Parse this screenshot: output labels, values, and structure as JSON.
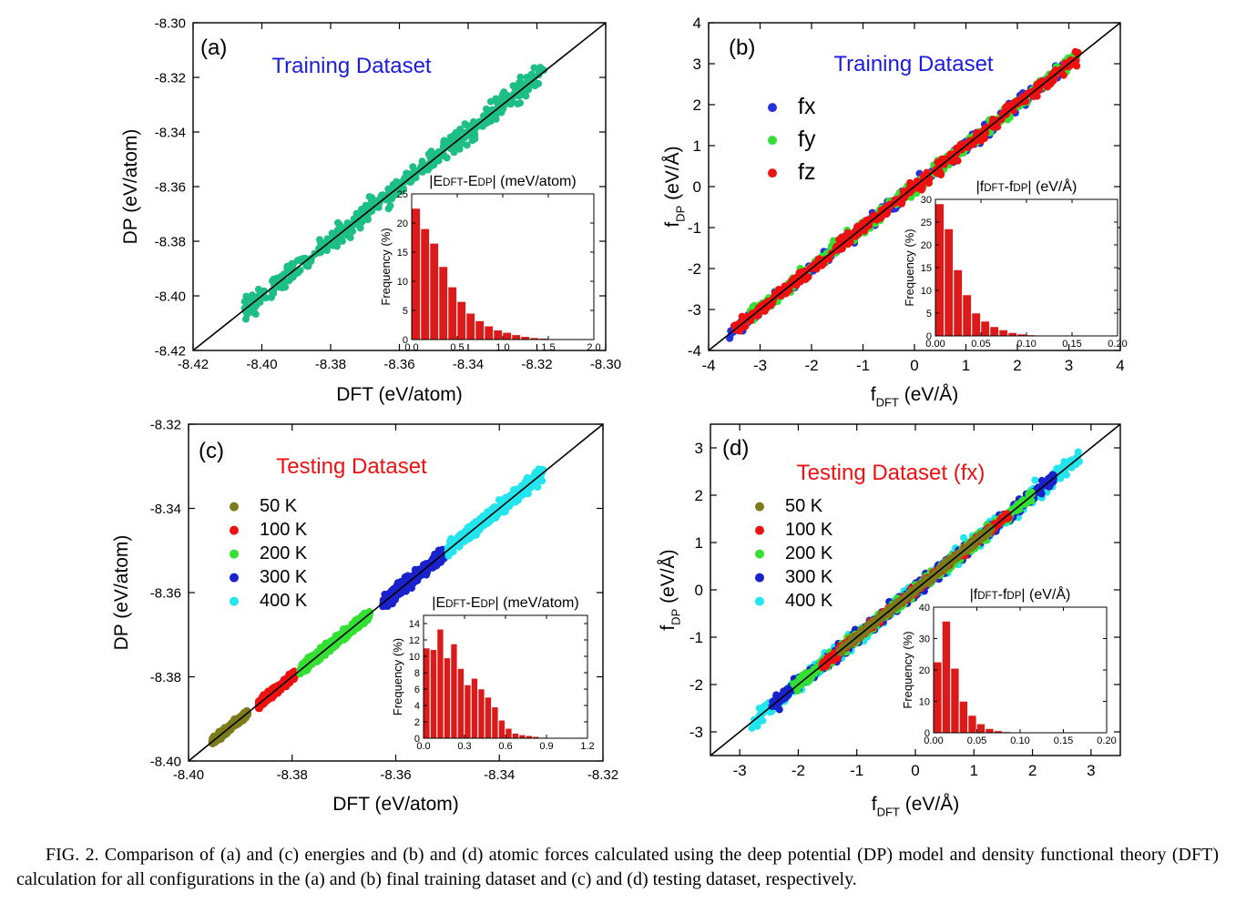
{
  "caption": "FIG. 2. Comparison of (a) and (c) energies and (b) and (d) atomic forces calculated using the deep potential (DP) model and density functional theory (DFT) calculation for all configurations in the (a) and (b) final training dataset and (c) and (d) testing dataset, respectively.",
  "chart_data": [
    {
      "type": "scatter",
      "panel": "(a)",
      "title": "Training Dataset",
      "xlabel": "DFT (eV/atom)",
      "ylabel": "DP (eV/atom)",
      "xlim": [
        -8.42,
        -8.3
      ],
      "ylim": [
        -8.42,
        -8.3
      ],
      "xticks": [
        -8.42,
        -8.4,
        -8.38,
        -8.36,
        -8.34,
        -8.32,
        -8.3
      ],
      "yticks": [
        -8.42,
        -8.4,
        -8.38,
        -8.36,
        -8.34,
        -8.32,
        -8.3
      ],
      "xticklabels": [
        "-8.42",
        "-8.40",
        "-8.38",
        "-8.36",
        "-8.34",
        "-8.32",
        "-8.30"
      ],
      "yticklabels": [
        "-8.42",
        "-8.40",
        "-8.38",
        "-8.36",
        "-8.34",
        "-8.32",
        "-8.30"
      ],
      "reference_line": "y = x",
      "series": [
        {
          "color": "#1dbf86",
          "x_range": [
            -8.405,
            -8.318
          ],
          "spread": 0.0018
        }
      ],
      "inset": {
        "type": "bar",
        "title": "|EDFT-EDP| (meV/atom)",
        "ylabel": "Frequency (%)",
        "xlim": [
          0,
          2.0
        ],
        "ylim": [
          0,
          25
        ],
        "xticks": [
          0.0,
          0.5,
          1.0,
          1.5,
          2.0
        ],
        "xticklabels": [
          "0.0",
          "0.5",
          "1.0",
          "1.5",
          "2.0"
        ],
        "yticks": [
          0,
          5,
          10,
          15,
          20,
          25
        ],
        "yticklabels": [
          "0",
          "5",
          "10",
          "15",
          "20",
          "25"
        ],
        "bin_width": 0.1,
        "values": [
          22.5,
          19,
          16.5,
          12.5,
          9,
          6.5,
          4.5,
          3.2,
          2.3,
          1.6,
          1.2,
          0.8,
          0.5,
          0.3,
          0.2,
          0.1
        ]
      }
    },
    {
      "type": "scatter",
      "panel": "(b)",
      "title": "Training Dataset",
      "xlabel": "fDFT (eV/Å)",
      "ylabel": "fDP (eV/Å)",
      "xlim": [
        -4,
        4
      ],
      "ylim": [
        -4,
        4
      ],
      "xticks": [
        -4,
        -3,
        -2,
        -1,
        0,
        1,
        2,
        3,
        4
      ],
      "yticks": [
        -4,
        -3,
        -2,
        -1,
        0,
        1,
        2,
        3,
        4
      ],
      "xticklabels": [
        "-4",
        "-3",
        "-2",
        "-1",
        "0",
        "1",
        "2",
        "3",
        "4"
      ],
      "yticklabels": [
        "-4",
        "-3",
        "-2",
        "-1",
        "0",
        "1",
        "2",
        "3",
        "4"
      ],
      "reference_line": "y = x",
      "legend_position": "upper-left",
      "series": [
        {
          "name": "fx",
          "color": "#2233dd",
          "x_range": [
            -3.6,
            3.1
          ],
          "spread": 0.08
        },
        {
          "name": "fy",
          "color": "#33e033",
          "x_range": [
            -3.3,
            3.2
          ],
          "spread": 0.08
        },
        {
          "name": "fz",
          "color": "#ee1111",
          "x_range": [
            -3.5,
            3.2
          ],
          "spread": 0.08
        }
      ],
      "inset": {
        "type": "bar",
        "title": "|fDFT-fDP| (eV/Å)",
        "ylabel": "Frequency (%)",
        "xlim": [
          0,
          0.2
        ],
        "ylim": [
          0,
          30
        ],
        "xticks": [
          0.0,
          0.05,
          0.1,
          0.15,
          0.2
        ],
        "xticklabels": [
          "0.00",
          "0.05",
          "0.10",
          "0.15",
          "0.20"
        ],
        "yticks": [
          0,
          5,
          10,
          15,
          20,
          25,
          30
        ],
        "yticklabels": [
          "0",
          "5",
          "10",
          "15",
          "20",
          "25",
          "30"
        ],
        "bin_width": 0.01,
        "values": [
          29,
          23.5,
          14.5,
          9,
          5,
          3.2,
          2.0,
          1.3,
          0.7,
          0.4,
          0.2,
          0.1
        ]
      }
    },
    {
      "type": "scatter",
      "panel": "(c)",
      "title": "Testing Dataset",
      "xlabel": "DFT (eV/atom)",
      "ylabel": "DP (eV/atom)",
      "xlim": [
        -8.4,
        -8.32
      ],
      "ylim": [
        -8.4,
        -8.32
      ],
      "xticks": [
        -8.4,
        -8.38,
        -8.36,
        -8.34,
        -8.32
      ],
      "yticks": [
        -8.4,
        -8.38,
        -8.36,
        -8.34,
        -8.32
      ],
      "xticklabels": [
        "-8.40",
        "-8.38",
        "-8.36",
        "-8.34",
        "-8.32"
      ],
      "yticklabels": [
        "-8.40",
        "-8.38",
        "-8.36",
        "-8.34",
        "-8.32"
      ],
      "reference_line": "y = x",
      "legend_position": "upper-left",
      "series": [
        {
          "name": "50 K",
          "color": "#7d7a1c",
          "x_range": [
            -8.3955,
            -8.3885
          ],
          "spread": 0.0004
        },
        {
          "name": "100 K",
          "color": "#ee1111",
          "x_range": [
            -8.3865,
            -8.3795
          ],
          "spread": 0.0005
        },
        {
          "name": "200 K",
          "color": "#33e033",
          "x_range": [
            -8.3785,
            -8.365
          ],
          "spread": 0.0006
        },
        {
          "name": "300 K",
          "color": "#1a22cc",
          "x_range": [
            -8.3625,
            -8.3505
          ],
          "spread": 0.0007
        },
        {
          "name": "400 K",
          "color": "#22e5ee",
          "x_range": [
            -8.35,
            -8.3315
          ],
          "spread": 0.0008
        }
      ],
      "inset": {
        "type": "bar",
        "title": "|EDFT-EDP| (meV/atom)",
        "ylabel": "Frequency (%)",
        "xlim": [
          0,
          1.2
        ],
        "ylim": [
          0,
          15
        ],
        "xticks": [
          0.0,
          0.3,
          0.6,
          0.9,
          1.2
        ],
        "xticklabels": [
          "0.0",
          "0.3",
          "0.6",
          "0.9",
          "1.2"
        ],
        "yticks": [
          0,
          2,
          4,
          6,
          8,
          10,
          12,
          14
        ],
        "yticklabels": [
          "0",
          "2",
          "4",
          "6",
          "8",
          "10",
          "12",
          "14"
        ],
        "bin_width": 0.05,
        "values": [
          11,
          10.8,
          13.3,
          9.8,
          11.5,
          8.5,
          6.5,
          7.3,
          6,
          5,
          3.8,
          2.2,
          1.2,
          0.6,
          0.4,
          0.3,
          0.2,
          0.1
        ]
      }
    },
    {
      "type": "scatter",
      "panel": "(d)",
      "title": "Testing Dataset (fx)",
      "xlabel": "fDFT (eV/Å)",
      "ylabel": "fDP (eV/Å)",
      "xlim": [
        -3.5,
        3.5
      ],
      "ylim": [
        -3.5,
        3.5
      ],
      "xticks": [
        -3,
        -2,
        -1,
        0,
        1,
        2,
        3
      ],
      "yticks": [
        -3,
        -2,
        -1,
        0,
        1,
        2,
        3
      ],
      "xticklabels": [
        "-3",
        "-2",
        "-1",
        "0",
        "1",
        "2",
        "3"
      ],
      "yticklabels": [
        "-3",
        "-2",
        "-1",
        "0",
        "1",
        "2",
        "3"
      ],
      "reference_line": "y = x",
      "legend_position": "upper-left",
      "series": [
        {
          "name": "400 K",
          "color": "#22e5ee",
          "x_range": [
            -2.8,
            2.8
          ],
          "spread": 0.09
        },
        {
          "name": "300 K",
          "color": "#1a22cc",
          "x_range": [
            -2.5,
            2.4
          ],
          "spread": 0.08
        },
        {
          "name": "200 K",
          "color": "#33e033",
          "x_range": [
            -2.1,
            2.0
          ],
          "spread": 0.06
        },
        {
          "name": "100 K",
          "color": "#ee1111",
          "x_range": [
            -1.6,
            1.6
          ],
          "spread": 0.04
        },
        {
          "name": "50 K",
          "color": "#7d7a1c",
          "x_range": [
            -1.3,
            1.3
          ],
          "spread": 0.03
        }
      ],
      "legend_order": [
        "50 K",
        "100 K",
        "200 K",
        "300 K",
        "400 K"
      ],
      "inset": {
        "type": "bar",
        "title": "|fDFT-fDP| (eV/Å)",
        "ylabel": "Frequency (%)",
        "xlim": [
          0,
          0.2
        ],
        "ylim": [
          0,
          40
        ],
        "xticks": [
          0.0,
          0.05,
          0.1,
          0.15,
          0.2
        ],
        "xticklabels": [
          "0.00",
          "0.05",
          "0.10",
          "0.15",
          "0.20"
        ],
        "yticks": [
          0,
          10,
          20,
          30,
          40
        ],
        "yticklabels": [
          "0",
          "10",
          "20",
          "30",
          "40"
        ],
        "bin_width": 0.01,
        "values": [
          22.5,
          35.5,
          20.5,
          10,
          5.5,
          2.8,
          1.3,
          0.6,
          0.3,
          0.1
        ]
      }
    }
  ]
}
